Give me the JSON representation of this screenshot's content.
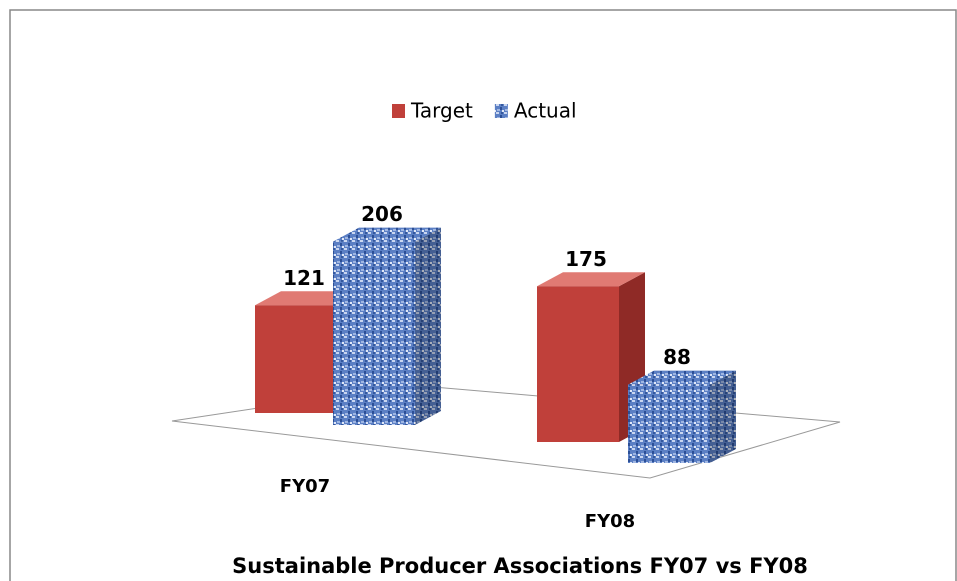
{
  "chart_data": {
    "type": "bar3d",
    "title": "Sustainable Producer Associations FY07 vs FY08",
    "categories": [
      "FY07",
      "FY08"
    ],
    "series": [
      {
        "name": "Target",
        "color": "#c0403a",
        "values": [
          121,
          175
        ]
      },
      {
        "name": "Actual",
        "color": "#4a6fb5",
        "values": [
          206,
          88
        ]
      }
    ],
    "legend": "top"
  }
}
